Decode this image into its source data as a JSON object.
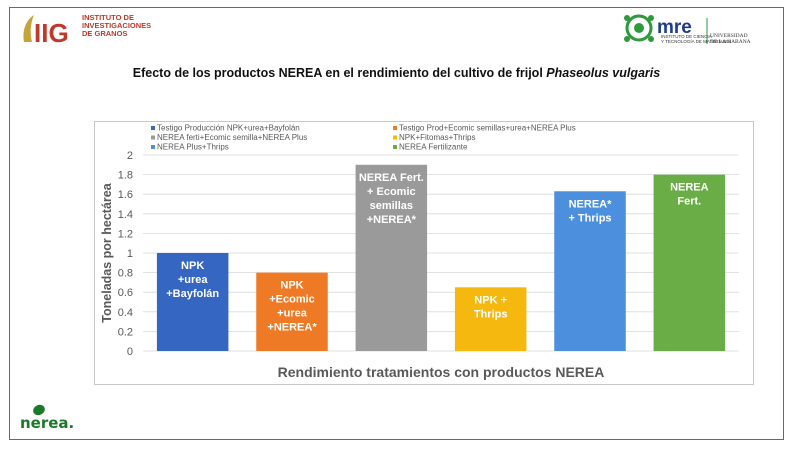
{
  "header": {
    "iig_logo_letters": "IIG",
    "iig_logo_line1": "INSTITUTO DE",
    "iig_logo_line2": "INVESTIGACIONES",
    "iig_logo_line3": "DE GRANOS",
    "mre_logo_text": "mre",
    "mre_subtext_line1": "INSTITUTO DE CIENCIA",
    "mre_subtext_line2": "Y TECNOLOGÍA DE MATERIALES",
    "mre_university_line1": "UNIVERSIDAD",
    "mre_university_line2": "DE LA HABANA"
  },
  "slide": {
    "title_prefix": "Efecto de los productos NEREA en el rendimiento del cultivo de frijol ",
    "title_italic": "Phaseolus vulgaris"
  },
  "footer": {
    "nerea_logo_text": "nerea."
  },
  "colors": {
    "frame_border": "#3a8a3a",
    "series_1": "#3566c2",
    "series_2": "#ef7a26",
    "series_3": "#9a9a9a",
    "series_4": "#f5b80f",
    "series_5": "#4c8fdc",
    "series_6": "#6aac46",
    "bar_label": "#ffffff",
    "axis_text": "#595959",
    "gridline": "#d9d9d9"
  },
  "chart_data": {
    "type": "bar",
    "title": "",
    "xlabel": "Rendimiento tratamientos con productos NEREA",
    "ylabel": "Toneladas por hectárea",
    "ylim": [
      0,
      2
    ],
    "yticks": [
      "0",
      "0.2",
      "0.4",
      "0.6",
      "0.8",
      "1",
      "1.2",
      "1.4",
      "1.6",
      "1.8",
      "2"
    ],
    "grid": true,
    "legend_position": "top",
    "series": [
      {
        "name": "Testigo Producción NPK+urea+Bayfolán",
        "values": [
          1.0
        ],
        "color_key": "series_1",
        "label_lines": [
          "NPK",
          "+urea",
          "+Bayfolán"
        ]
      },
      {
        "name": "Testigo Prod+Ecomic semillas+urea+NEREA Plus",
        "values": [
          0.8
        ],
        "color_key": "series_2",
        "label_lines": [
          "NPK",
          "+Ecomic",
          "+urea",
          "+NEREA*"
        ]
      },
      {
        "name": "NEREA ferti+Ecomic semilla+NEREA Plus",
        "values": [
          1.9
        ],
        "color_key": "series_3",
        "label_lines": [
          "NEREA Fert.",
          "+ Ecomic",
          "semillas",
          "+NEREA*"
        ]
      },
      {
        "name": "NPK+Fitomas+Thrips",
        "values": [
          0.65
        ],
        "color_key": "series_4",
        "label_lines": [
          "NPK +",
          "Thrips"
        ]
      },
      {
        "name": "NEREA Plus+Thrips",
        "values": [
          1.63
        ],
        "color_key": "series_5",
        "label_lines": [
          "NEREA*",
          "+ Thrips"
        ]
      },
      {
        "name": "NEREA Fertilizante",
        "values": [
          1.8
        ],
        "color_key": "series_6",
        "label_lines": [
          "NEREA",
          "Fert."
        ]
      }
    ]
  }
}
